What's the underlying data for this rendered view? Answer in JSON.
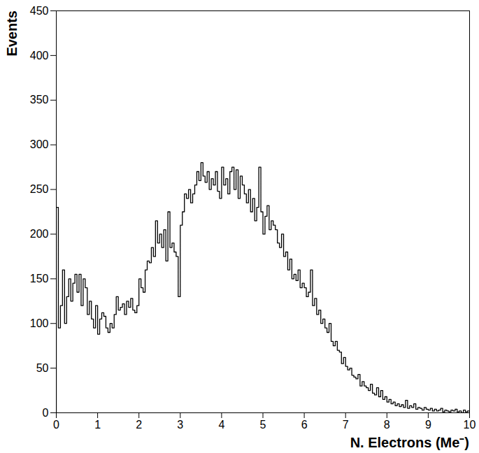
{
  "chart_data": {
    "type": "histogram",
    "x_label": "N. Electrons (Me⁻)",
    "y_label": "Events",
    "color": "#000000",
    "grid": false,
    "xlim": [
      0,
      10
    ],
    "ylim": [
      0,
      450
    ],
    "xticks": [
      0,
      1,
      2,
      3,
      4,
      5,
      6,
      7,
      8,
      9,
      10
    ],
    "yticks": [
      0,
      50,
      100,
      150,
      200,
      250,
      300,
      350,
      400,
      450
    ],
    "bins": [
      0,
      0.05,
      0.1,
      0.15,
      0.2,
      0.25,
      0.3,
      0.35,
      0.4,
      0.45,
      0.5,
      0.55,
      0.6,
      0.65,
      0.7,
      0.75,
      0.8,
      0.85,
      0.9,
      0.95,
      1,
      1.05,
      1.1,
      1.15,
      1.2,
      1.25,
      1.3,
      1.35,
      1.4,
      1.45,
      1.5,
      1.55,
      1.6,
      1.65,
      1.7,
      1.75,
      1.8,
      1.85,
      1.9,
      1.95,
      2,
      2.05,
      2.1,
      2.15,
      2.2,
      2.25,
      2.3,
      2.35,
      2.4,
      2.45,
      2.5,
      2.55,
      2.6,
      2.65,
      2.7,
      2.75,
      2.8,
      2.85,
      2.9,
      2.95,
      3,
      3.05,
      3.1,
      3.15,
      3.2,
      3.25,
      3.3,
      3.35,
      3.4,
      3.45,
      3.5,
      3.55,
      3.6,
      3.65,
      3.7,
      3.75,
      3.8,
      3.85,
      3.9,
      3.95,
      4,
      4.05,
      4.1,
      4.15,
      4.2,
      4.25,
      4.3,
      4.35,
      4.4,
      4.45,
      4.5,
      4.55,
      4.6,
      4.65,
      4.7,
      4.75,
      4.8,
      4.85,
      4.9,
      4.95,
      5,
      5.05,
      5.1,
      5.15,
      5.2,
      5.25,
      5.3,
      5.35,
      5.4,
      5.45,
      5.5,
      5.55,
      5.6,
      5.65,
      5.7,
      5.75,
      5.8,
      5.85,
      5.9,
      5.95,
      6,
      6.05,
      6.1,
      6.15,
      6.2,
      6.25,
      6.3,
      6.35,
      6.4,
      6.45,
      6.5,
      6.55,
      6.6,
      6.65,
      6.7,
      6.75,
      6.8,
      6.85,
      6.9,
      6.95,
      7,
      7.05,
      7.1,
      7.15,
      7.2,
      7.25,
      7.3,
      7.35,
      7.4,
      7.45,
      7.5,
      7.55,
      7.6,
      7.65,
      7.7,
      7.75,
      7.8,
      7.85,
      7.9,
      7.95,
      8,
      8.05,
      8.1,
      8.15,
      8.2,
      8.25,
      8.3,
      8.35,
      8.4,
      8.45,
      8.5,
      8.55,
      8.6,
      8.65,
      8.7,
      8.75,
      8.8,
      8.85,
      8.9,
      8.95,
      9,
      9.05,
      9.1,
      9.15,
      9.2,
      9.25,
      9.3,
      9.35,
      9.4,
      9.45,
      9.5,
      9.55,
      9.6,
      9.65,
      9.7,
      9.75,
      9.8,
      9.85,
      9.9,
      9.95,
      10
    ],
    "values": [
      230,
      95,
      120,
      160,
      100,
      130,
      150,
      125,
      145,
      155,
      135,
      155,
      120,
      150,
      140,
      110,
      125,
      105,
      95,
      120,
      88,
      105,
      112,
      108,
      95,
      90,
      100,
      95,
      110,
      130,
      115,
      118,
      122,
      110,
      125,
      118,
      128,
      115,
      112,
      120,
      150,
      140,
      135,
      160,
      170,
      168,
      185,
      175,
      215,
      190,
      200,
      185,
      205,
      170,
      225,
      185,
      190,
      180,
      175,
      130,
      210,
      225,
      245,
      240,
      250,
      235,
      245,
      255,
      270,
      260,
      280,
      265,
      258,
      270,
      250,
      262,
      255,
      270,
      248,
      240,
      275,
      255,
      262,
      245,
      270,
      275,
      250,
      272,
      240,
      265,
      255,
      245,
      235,
      250,
      225,
      240,
      215,
      230,
      275,
      225,
      200,
      220,
      232,
      205,
      215,
      210,
      205,
      190,
      185,
      200,
      175,
      180,
      160,
      172,
      150,
      155,
      148,
      160,
      140,
      145,
      140,
      130,
      135,
      160,
      120,
      128,
      110,
      115,
      100,
      105,
      95,
      90,
      100,
      80,
      75,
      80,
      70,
      68,
      55,
      62,
      52,
      48,
      50,
      42,
      40,
      38,
      43,
      30,
      35,
      30,
      28,
      25,
      32,
      22,
      20,
      28,
      18,
      25,
      15,
      18,
      12,
      15,
      10,
      12,
      8,
      10,
      7,
      9,
      6,
      14,
      5,
      8,
      6,
      10,
      4,
      6,
      5,
      3,
      6,
      4,
      3,
      5,
      2,
      4,
      2,
      3,
      5,
      1,
      3,
      2,
      1,
      3,
      2,
      4,
      1,
      2,
      0,
      3,
      1,
      2
    ]
  }
}
